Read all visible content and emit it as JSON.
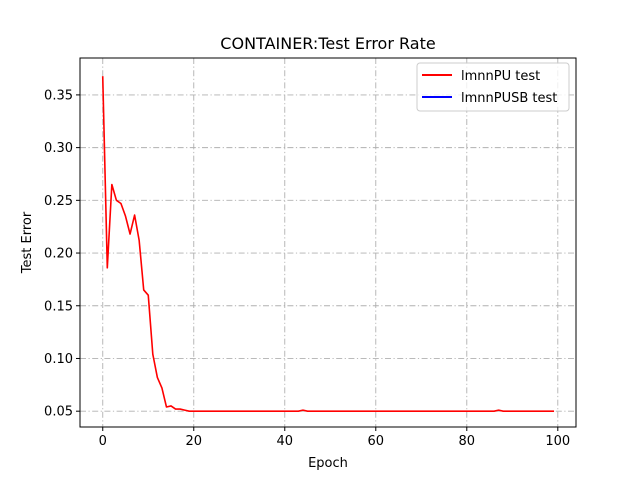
{
  "chart_data": {
    "type": "line",
    "title": "CONTAINER:Test Error Rate",
    "xlabel": "Epoch",
    "ylabel": "Test Error",
    "xlim": [
      -5,
      104
    ],
    "ylim": [
      0.035,
      0.385
    ],
    "xticks": [
      0,
      20,
      40,
      60,
      80,
      100
    ],
    "xtick_labels": [
      "0",
      "20",
      "40",
      "60",
      "80",
      "100"
    ],
    "yticks": [
      0.05,
      0.1,
      0.15,
      0.2,
      0.25,
      0.3,
      0.35
    ],
    "ytick_labels": [
      "0.05",
      "0.10",
      "0.15",
      "0.20",
      "0.25",
      "0.30",
      "0.35"
    ],
    "grid": true,
    "legend_position": "top-right",
    "series": [
      {
        "name": "lmnnPU test",
        "color": "#ff0000",
        "x": [
          0,
          1,
          2,
          3,
          4,
          5,
          6,
          7,
          8,
          9,
          10,
          11,
          12,
          13,
          14,
          15,
          16,
          17,
          18,
          19,
          20,
          21,
          22,
          23,
          24,
          25,
          26,
          27,
          28,
          29,
          30,
          31,
          32,
          33,
          34,
          35,
          36,
          37,
          38,
          39,
          40,
          41,
          42,
          43,
          44,
          45,
          46,
          47,
          48,
          49,
          50,
          51,
          52,
          53,
          54,
          55,
          56,
          57,
          58,
          59,
          60,
          61,
          62,
          63,
          64,
          65,
          66,
          67,
          68,
          69,
          70,
          71,
          72,
          73,
          74,
          75,
          76,
          77,
          78,
          79,
          80,
          81,
          82,
          83,
          84,
          85,
          86,
          87,
          88,
          89,
          90,
          91,
          92,
          93,
          94,
          95,
          96,
          97,
          98,
          99
        ],
        "values": [
          0.367,
          0.186,
          0.265,
          0.25,
          0.247,
          0.235,
          0.218,
          0.236,
          0.212,
          0.165,
          0.16,
          0.104,
          0.082,
          0.072,
          0.054,
          0.055,
          0.052,
          0.052,
          0.051,
          0.05,
          0.05,
          0.05,
          0.05,
          0.05,
          0.05,
          0.05,
          0.05,
          0.05,
          0.05,
          0.05,
          0.05,
          0.05,
          0.05,
          0.05,
          0.05,
          0.05,
          0.05,
          0.05,
          0.05,
          0.05,
          0.05,
          0.05,
          0.05,
          0.05,
          0.051,
          0.05,
          0.05,
          0.05,
          0.05,
          0.05,
          0.05,
          0.05,
          0.05,
          0.05,
          0.05,
          0.05,
          0.05,
          0.05,
          0.05,
          0.05,
          0.05,
          0.05,
          0.05,
          0.05,
          0.05,
          0.05,
          0.05,
          0.05,
          0.05,
          0.05,
          0.05,
          0.05,
          0.05,
          0.05,
          0.05,
          0.05,
          0.05,
          0.05,
          0.05,
          0.05,
          0.05,
          0.05,
          0.05,
          0.05,
          0.05,
          0.05,
          0.05,
          0.051,
          0.05,
          0.05,
          0.05,
          0.05,
          0.05,
          0.05,
          0.05,
          0.05,
          0.05,
          0.05,
          0.05,
          0.05
        ]
      },
      {
        "name": "lmnnPUSB test",
        "color": "#0000ff",
        "x": [],
        "values": []
      }
    ]
  }
}
